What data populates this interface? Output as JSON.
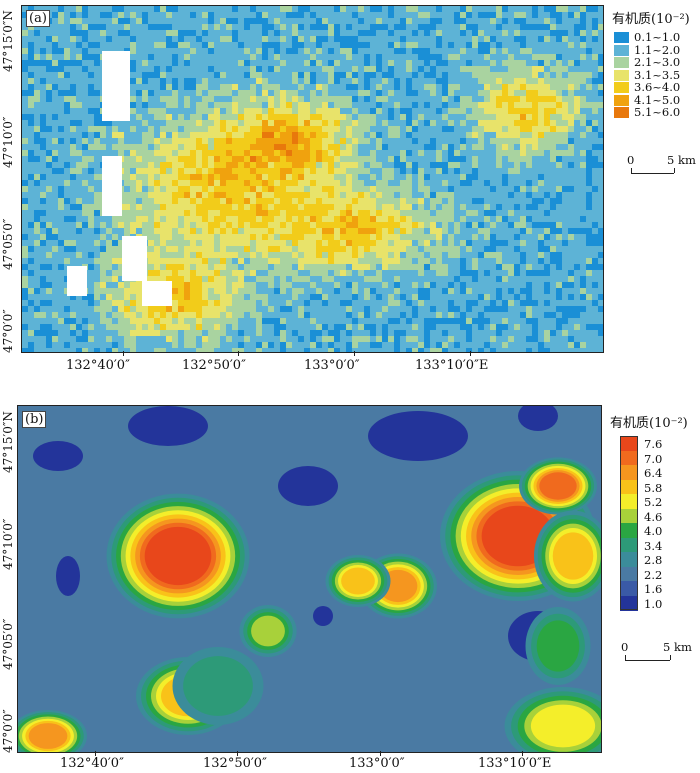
{
  "panel_a": {
    "label": "(a)",
    "lat_labels": [
      "47°15′0″N",
      "47°10′0″",
      "47°05′0″",
      "47°0′0″"
    ],
    "lon_labels": [
      "132°40′0″",
      "132°50′0″",
      "133°0′0″",
      "133°10′0″E"
    ],
    "legend": {
      "title": "有机质(10⁻²)",
      "items": [
        {
          "label": "0.1~1.0",
          "color": "#1a8fd6"
        },
        {
          "label": "1.1~2.0",
          "color": "#5db3d6"
        },
        {
          "label": "2.1~3.0",
          "color": "#a9d3a0"
        },
        {
          "label": "3.1~3.5",
          "color": "#e8e36a"
        },
        {
          "label": "3.6~4.0",
          "color": "#f2cc1a"
        },
        {
          "label": "4.1~5.0",
          "color": "#f0a20e"
        },
        {
          "label": "5.1~6.0",
          "color": "#e8780c"
        }
      ]
    },
    "scale": {
      "start": "0",
      "end": "5 km"
    }
  },
  "panel_b": {
    "label": "(b)",
    "lat_labels": [
      "47°15′0″N",
      "47°10′0″",
      "47°05′0″",
      "47°0′0″"
    ],
    "lon_labels": [
      "132°40′0″",
      "132°50′0″",
      "133°0′0″",
      "133°10′0″E"
    ],
    "legend": {
      "title": "有机质(10⁻²)",
      "items": [
        {
          "label": "7.6",
          "color": "#e8471b"
        },
        {
          "label": "7.0",
          "color": "#f06a1e"
        },
        {
          "label": "6.4",
          "color": "#f5961f"
        },
        {
          "label": "5.8",
          "color": "#f9c219"
        },
        {
          "label": "5.2",
          "color": "#f4ee2a"
        },
        {
          "label": "4.6",
          "color": "#a8d13a"
        },
        {
          "label": "4.0",
          "color": "#2aa642"
        },
        {
          "label": "3.4",
          "color": "#2d9a78"
        },
        {
          "label": "2.8",
          "color": "#3b8c9a"
        },
        {
          "label": "2.2",
          "color": "#4a7aa3"
        },
        {
          "label": "1.6",
          "color": "#3a5aa6"
        },
        {
          "label": "1.0",
          "color": "#23349a"
        }
      ]
    },
    "scale": {
      "start": "0",
      "end": "5 km"
    }
  }
}
